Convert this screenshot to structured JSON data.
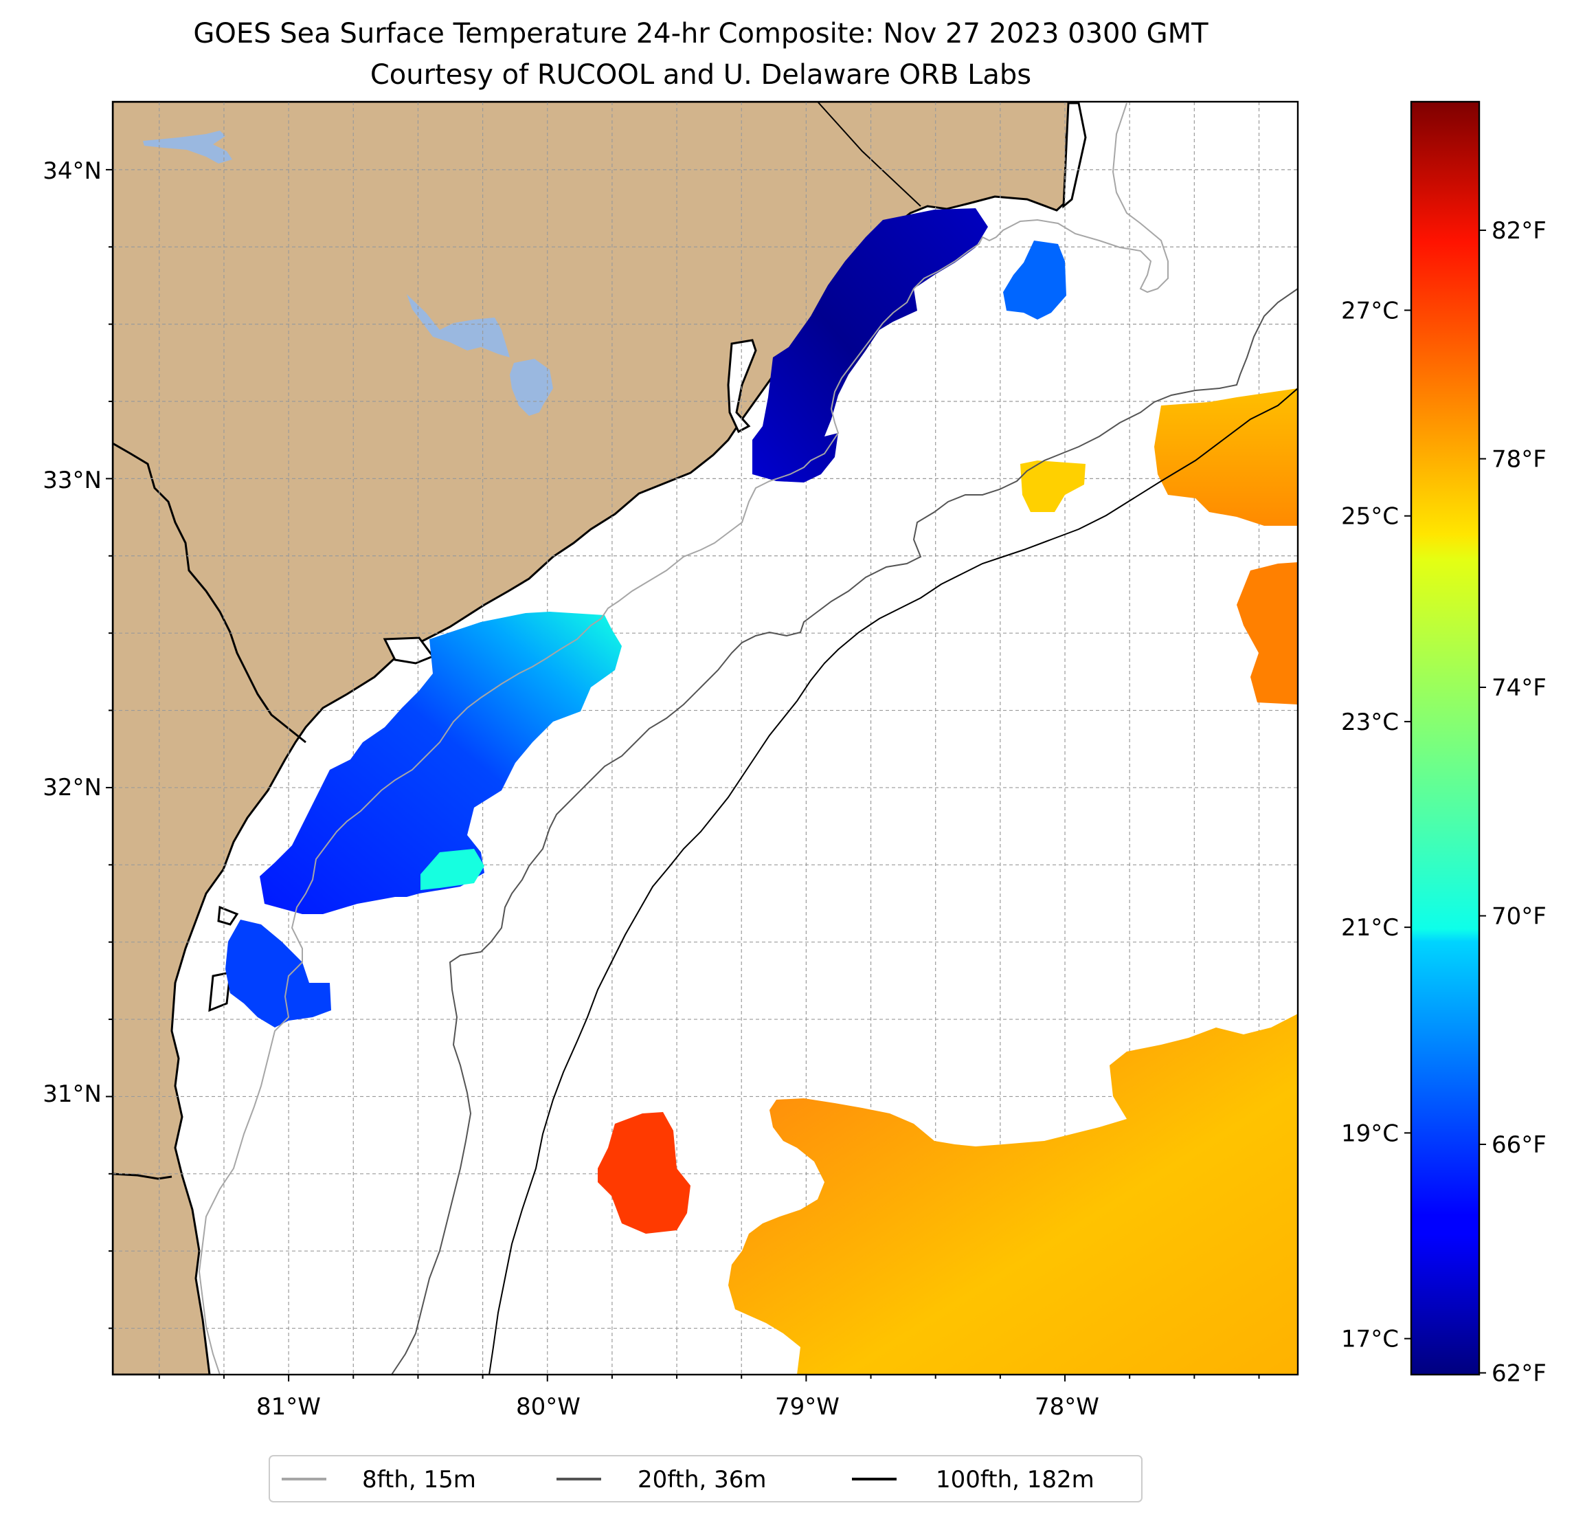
{
  "title": {
    "line1": "GOES Sea Surface Temperature 24-hr Composite: Nov 27 2023 0300 GMT",
    "line2": "Courtesy of RUCOOL and U. Delaware ORB Labs"
  },
  "map": {
    "lat_range": [
      30.1,
      34.22
    ],
    "lon_range": [
      -81.68,
      -77.1
    ],
    "lat_labels": [
      {
        "lat": 34,
        "text": "34°N"
      },
      {
        "lat": 33,
        "text": "33°N"
      },
      {
        "lat": 32,
        "text": "32°N"
      },
      {
        "lat": 31,
        "text": "31°N"
      }
    ],
    "lon_labels": [
      {
        "lon": -81,
        "text": "81°W"
      },
      {
        "lon": -80,
        "text": "80°W"
      },
      {
        "lon": -79,
        "text": "79°W"
      },
      {
        "lon": -78,
        "text": "78°W"
      }
    ],
    "grid_step_deg": 0.25,
    "land_color": "#d2b48c",
    "lake_color": "#9ab8e0"
  },
  "colorbar": {
    "colormap": "jet",
    "f_range": [
      61.97,
      84.25
    ],
    "f_labels": [
      "82°F",
      "78°F",
      "74°F",
      "70°F",
      "66°F",
      "62°F"
    ],
    "f_values": [
      82,
      78,
      74,
      70,
      66,
      62
    ],
    "c_labels": [
      "27°C",
      "25°C",
      "23°C",
      "21°C",
      "19°C",
      "17°C"
    ],
    "c_values": [
      27,
      25,
      23,
      21,
      19,
      17
    ]
  },
  "legend": {
    "items": [
      {
        "label": "8fth, 15m",
        "color": "#a6a6a6"
      },
      {
        "label": "20fth, 36m",
        "color": "#545454"
      },
      {
        "label": "100fth, 182m",
        "color": "#000000"
      }
    ]
  }
}
